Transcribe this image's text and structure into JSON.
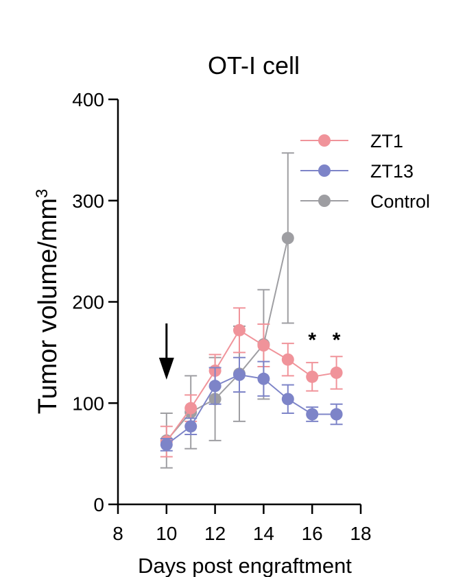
{
  "chart_data": {
    "type": "line",
    "title": "OT-I cell",
    "xlabel": "Days post engraftment",
    "ylabel": "Tumor volume/mm",
    "ylabel_superscript": "3",
    "xlim": [
      8,
      18
    ],
    "ylim": [
      0,
      400
    ],
    "xticks": [
      "8",
      "10",
      "12",
      "14",
      "16",
      "18"
    ],
    "yticks": [
      "0",
      "100",
      "200",
      "300",
      "400"
    ],
    "legend_position": "top-right",
    "arrow_at_x": 10,
    "significance": [
      {
        "x": 16,
        "label": "*"
      },
      {
        "x": 17,
        "label": "*"
      }
    ],
    "series": [
      {
        "name": "ZT1",
        "color": "#F0939A",
        "x": [
          10,
          11,
          12,
          13,
          14,
          15,
          16,
          17
        ],
        "values": [
          62,
          95,
          132,
          172,
          157,
          143,
          126,
          130
        ],
        "err_hi": [
          15,
          13,
          16,
          22,
          21,
          16,
          14,
          16
        ],
        "err_lo": [
          15,
          13,
          16,
          22,
          21,
          16,
          14,
          16
        ]
      },
      {
        "name": "ZT13",
        "color": "#7D84C8",
        "x": [
          10,
          11,
          12,
          13,
          14,
          15,
          16,
          17
        ],
        "values": [
          59,
          77,
          117,
          128,
          124,
          104,
          89,
          89
        ],
        "err_hi": [
          6,
          8,
          18,
          17,
          17,
          14,
          7,
          10
        ],
        "err_lo": [
          6,
          8,
          18,
          17,
          17,
          14,
          7,
          10
        ]
      },
      {
        "name": "Control",
        "color": "#9E9EA2",
        "x": [
          10,
          11,
          12,
          13,
          14,
          15
        ],
        "values": [
          63,
          91,
          104,
          129,
          158,
          263
        ],
        "err_hi": [
          27,
          36,
          41,
          47,
          54,
          84
        ],
        "err_lo": [
          27,
          36,
          41,
          47,
          54,
          84
        ]
      }
    ]
  }
}
